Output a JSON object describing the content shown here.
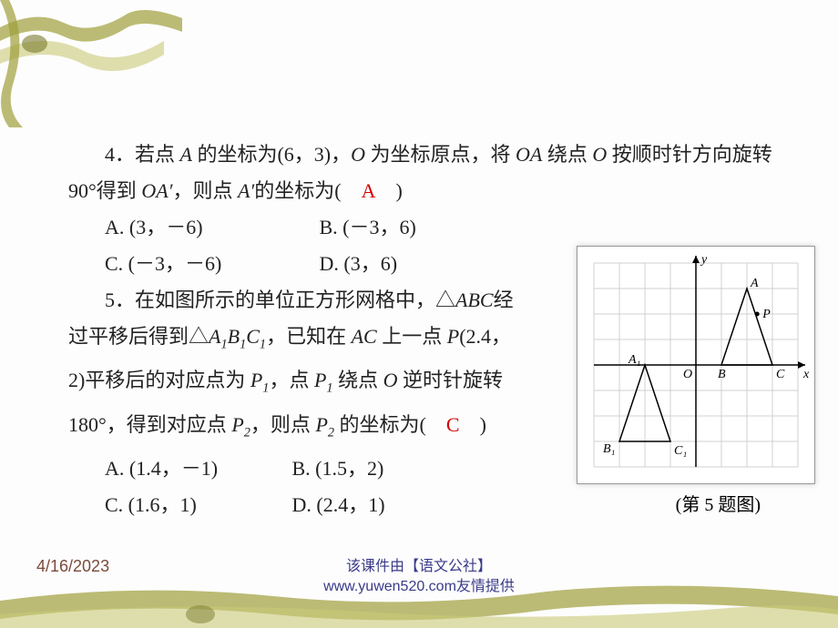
{
  "decor": {
    "ribbon_color": "#9e9e3a",
    "ribbon_highlight": "#c9c978",
    "knot_dark": "#7a7a2e"
  },
  "q4": {
    "number": "4．",
    "text_part1": "若点 ",
    "A": "A",
    "text_part2": " 的坐标为(6，3)，",
    "O": "O",
    "text_part3": " 为坐标原点，将 ",
    "OA": "OA",
    "text_part4": " 绕点 ",
    "O2": "O",
    "text_part5": " 按顺时针方向旋转 90°得到 ",
    "OAprime": "OA′",
    "text_part6": "，则点 ",
    "Aprime": "A′",
    "text_part7": "的坐标为(　",
    "answer": "A",
    "text_part8": "　)",
    "options": {
      "A": "A. (3，－6)",
      "B": "B. (－3，6)",
      "C": "C. (－3，－6)",
      "D": "D. (3，6)"
    }
  },
  "q5": {
    "number": "5．",
    "text_part1": "在如图所示的单位正方形网格中，△",
    "ABC": "ABC",
    "text_part2": "经过平移后得到△",
    "A1B1C1": "A₁B₁C₁",
    "text_part3": "，已知在 ",
    "AC": "AC",
    "text_part4": " 上一点 ",
    "P": "P",
    "text_part5": "(2.4，2)平移后的对应点为 ",
    "P1": "P₁",
    "text_part6": "，点 ",
    "P1b": "P₁",
    "text_part7": " 绕点 ",
    "O": "O",
    "text_part8": " 逆时针旋转180°，得到对应点 ",
    "P2": "P₂",
    "text_part9": "，则点 ",
    "P2b": "P₂",
    "text_part10": " 的坐标为(　",
    "answer": "C",
    "text_part11": "　)",
    "options": {
      "A": "A. (1.4，－1)",
      "B": "B. (1.5，2)",
      "C": "C. (1.6，1)",
      "D": "D. (2.4，1)"
    }
  },
  "figure": {
    "caption": "(第 5 题图)",
    "grid": {
      "xmin": -4,
      "xmax": 4,
      "ymin": -4,
      "ymax": 4,
      "cell": 28,
      "grid_color": "#d0d0d0",
      "axis_color": "#000",
      "bg": "#fff"
    },
    "axis_labels": {
      "x": "x",
      "y": "y",
      "O": "O"
    },
    "tri1": {
      "A": [
        2,
        3
      ],
      "B": [
        1,
        0
      ],
      "C": [
        3,
        0
      ],
      "labelA": "A",
      "labelB": "B",
      "labelC": "C"
    },
    "P": {
      "pt": [
        2.4,
        2
      ],
      "label": "P"
    },
    "tri2": {
      "A": [
        -2,
        0
      ],
      "B": [
        -3,
        -3
      ],
      "C": [
        -1,
        -3
      ],
      "labelA": "A₁",
      "labelB": "B₁",
      "labelC": "C₁"
    }
  },
  "footer": {
    "date": "4/16/2023",
    "credit_line1": "该课件由【语文公社】",
    "credit_line2": "www.yuwen520.com友情提供"
  }
}
